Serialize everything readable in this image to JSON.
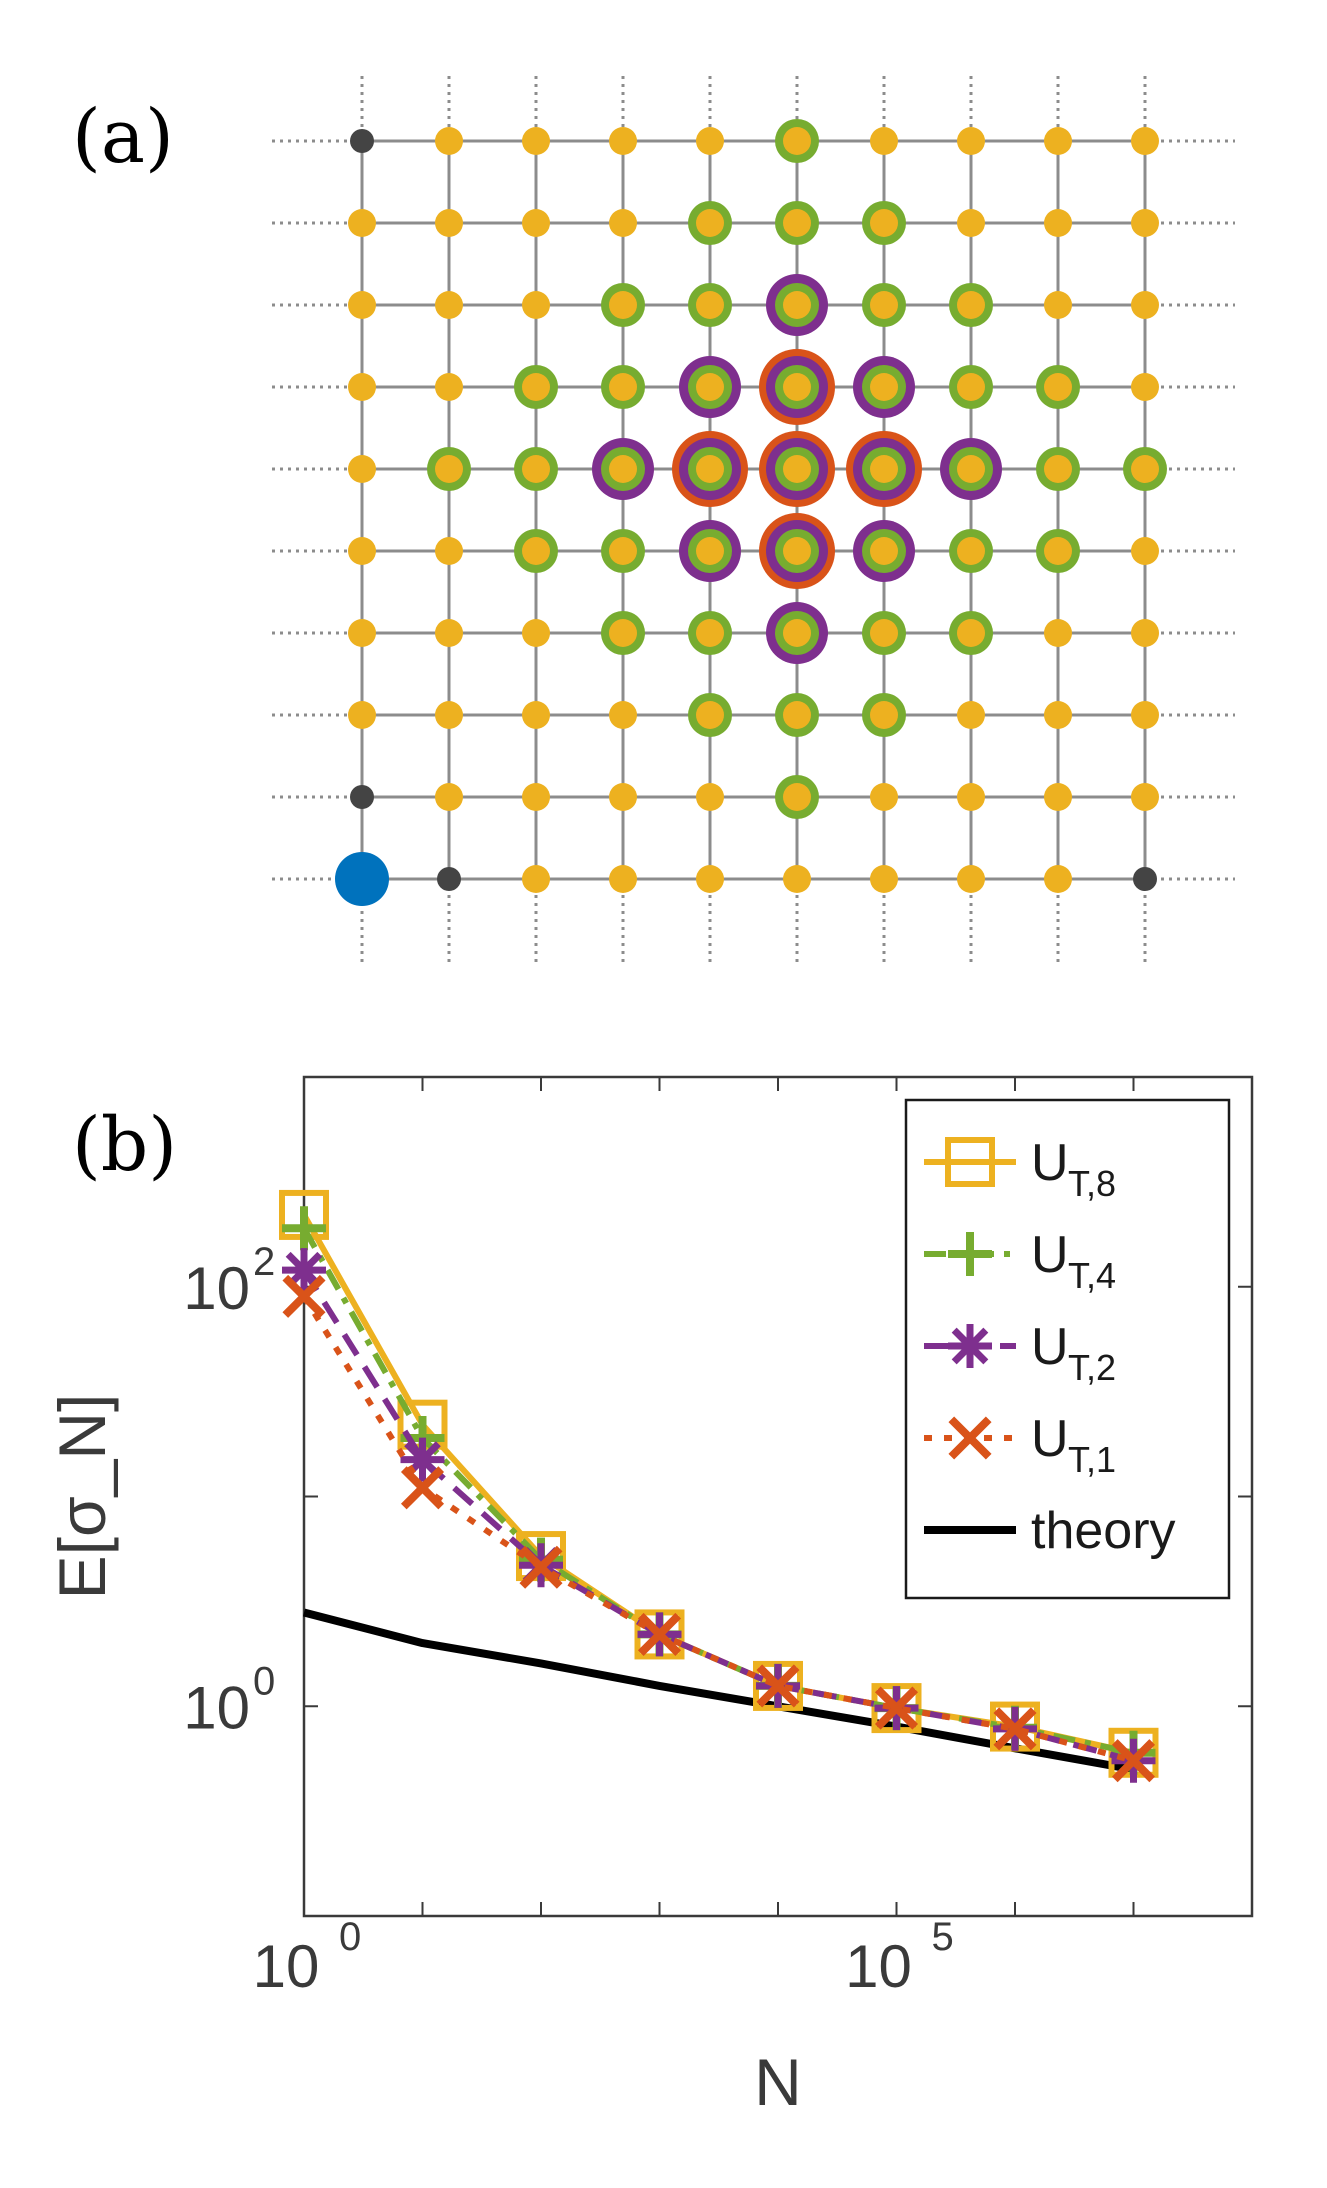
{
  "figure": {
    "panel_a_label": "(a)",
    "panel_b_label": "(b)"
  },
  "chart_data": [
    {
      "type": "lattice",
      "panel": "(a)",
      "grid": {
        "rows": 10,
        "cols": 10
      },
      "colors": {
        "yellow": "#edb120",
        "green": "#77ac30",
        "purple": "#7e2f8e",
        "orange": "#d95319",
        "gray": "#444444",
        "blue": "#0072bd",
        "line": "#8c8c8c"
      },
      "special_nodes": [
        {
          "row": 0,
          "col": 0,
          "kind": "gray"
        },
        {
          "row": 8,
          "col": 0,
          "kind": "gray"
        },
        {
          "row": 9,
          "col": 1,
          "kind": "gray"
        },
        {
          "row": 9,
          "col": 9,
          "kind": "gray"
        },
        {
          "row": 9,
          "col": 0,
          "kind": "blue"
        }
      ],
      "center": {
        "row": 4,
        "col": 5
      },
      "rings": {
        "orange_radius": 1,
        "purple_radius": 2,
        "green_radius": 4
      }
    },
    {
      "type": "line",
      "panel": "(b)",
      "xlabel": "N",
      "ylabel": "E[σ_N]",
      "xscale": "log",
      "yscale": "log",
      "xlim": [
        1,
        100000000
      ],
      "ylim": [
        0.1,
        1000
      ],
      "x_ticks": [
        {
          "base": "10",
          "exp": "0",
          "value": 1
        },
        {
          "base": "10",
          "exp": "5",
          "value": 100000
        }
      ],
      "y_ticks": [
        {
          "base": "10",
          "exp": "0",
          "value": 1
        },
        {
          "base": "10",
          "exp": "2",
          "value": 100
        }
      ],
      "x": [
        1,
        10,
        100,
        1000,
        10000,
        100000,
        1000000,
        10000000
      ],
      "legend_position": "top-right",
      "series": [
        {
          "name": "U_T,8",
          "label_main": "U",
          "label_sub": "T,8",
          "color": "#edb120",
          "marker": "square",
          "dash": "solid",
          "values": [
            220,
            22,
            5.2,
            2.2,
            1.25,
            0.98,
            0.8,
            0.6
          ]
        },
        {
          "name": "U_T,4",
          "label_main": "U",
          "label_sub": "T,4",
          "color": "#77ac30",
          "marker": "plus",
          "dash": "dashdot",
          "values": [
            190,
            19,
            5.0,
            2.2,
            1.25,
            0.98,
            0.79,
            0.6
          ]
        },
        {
          "name": "U_T,2",
          "label_main": "U",
          "label_sub": "T,2",
          "color": "#7e2f8e",
          "marker": "asterisk",
          "dash": "dashed",
          "values": [
            120,
            15,
            4.7,
            2.2,
            1.25,
            0.98,
            0.78,
            0.55
          ]
        },
        {
          "name": "U_T,1",
          "label_main": "U",
          "label_sub": "T,1",
          "color": "#d95319",
          "marker": "x",
          "dash": "dotted",
          "values": [
            90,
            11,
            4.6,
            2.2,
            1.25,
            0.98,
            0.78,
            0.55
          ]
        },
        {
          "name": "theory",
          "label_main": "theory",
          "label_sub": "",
          "color": "#000000",
          "marker": "none",
          "dash": "solid",
          "values": [
            2.8,
            2.0,
            1.6,
            1.25,
            1.0,
            0.8,
            0.63,
            0.5
          ]
        }
      ]
    }
  ]
}
